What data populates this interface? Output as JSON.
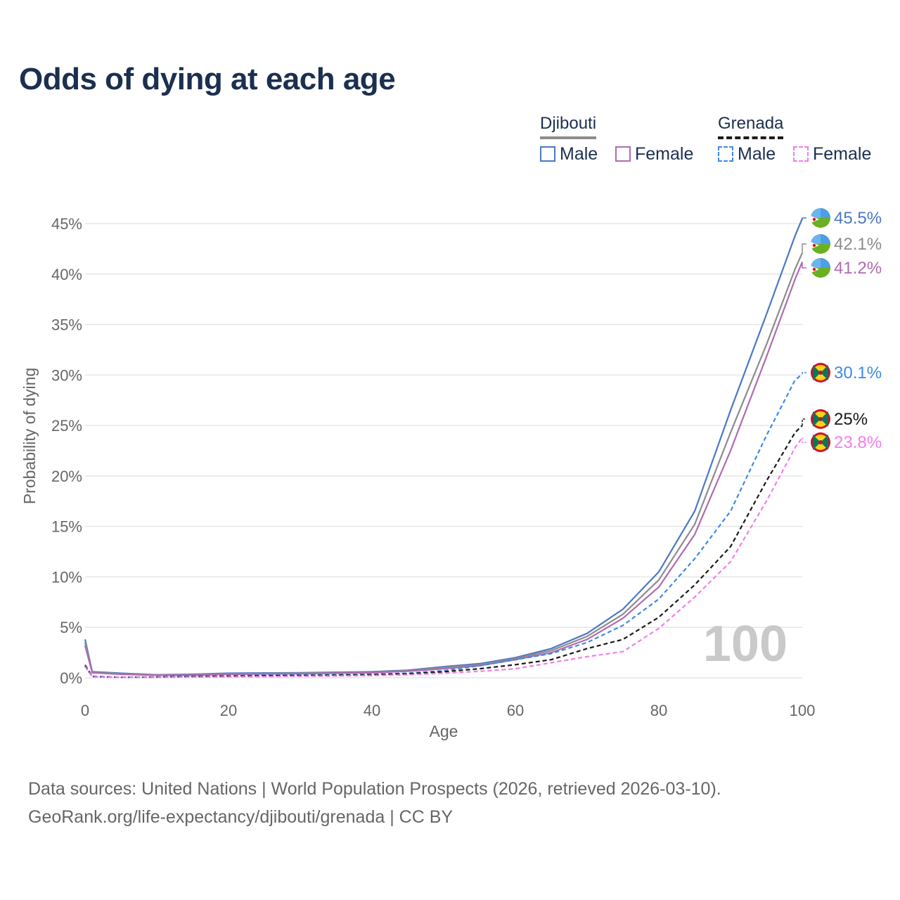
{
  "title": "Odds of dying at each age",
  "legend": {
    "groups": [
      {
        "country": "Djibouti",
        "line_style": "solid",
        "underline_color": "#8c8c8c",
        "items": [
          {
            "label": "Male",
            "color": "#4a78c4"
          },
          {
            "label": "Female",
            "color": "#b06ab0"
          }
        ]
      },
      {
        "country": "Grenada",
        "line_style": "dashed",
        "underline_color": "#1a1a1a",
        "items": [
          {
            "label": "Male",
            "color": "#3d8ae8"
          },
          {
            "label": "Female",
            "color": "#f27ee8"
          }
        ]
      }
    ]
  },
  "footer": {
    "line1": "Data sources: United Nations | World Population Prospects (2026, retrieved 2026-03-10).",
    "line2": "GeoRank.org/life-expectancy/djibouti/grenada | CC BY"
  },
  "chart_data": {
    "type": "line",
    "title": "Odds of dying at each age",
    "xlabel": "Age",
    "ylabel": "Probability of dying",
    "xlim": [
      0,
      100
    ],
    "ylim": [
      0,
      45
    ],
    "x_ticks": [
      0,
      20,
      40,
      60,
      80,
      100
    ],
    "y_ticks": [
      0,
      5,
      10,
      15,
      20,
      25,
      30,
      35,
      40,
      45
    ],
    "y_tick_labels": [
      "0%",
      "5%",
      "10%",
      "15%",
      "20%",
      "25%",
      "30%",
      "35%",
      "40%",
      "45%"
    ],
    "x_tick_labels": [
      "0",
      "20",
      "40",
      "60",
      "80",
      "100"
    ],
    "annotation": "100",
    "series": [
      {
        "name": "Djibouti Male",
        "country": "Djibouti",
        "sex": "Male",
        "style": "solid",
        "color": "#4a78c4",
        "end_label": "45.5%",
        "flag": "djibouti",
        "points": [
          [
            0,
            3.8
          ],
          [
            1,
            0.6
          ],
          [
            5,
            0.45
          ],
          [
            10,
            0.3
          ],
          [
            15,
            0.35
          ],
          [
            20,
            0.45
          ],
          [
            25,
            0.48
          ],
          [
            30,
            0.5
          ],
          [
            35,
            0.55
          ],
          [
            40,
            0.6
          ],
          [
            45,
            0.75
          ],
          [
            50,
            1.1
          ],
          [
            55,
            1.4
          ],
          [
            60,
            2.0
          ],
          [
            65,
            2.9
          ],
          [
            70,
            4.4
          ],
          [
            75,
            6.8
          ],
          [
            80,
            10.5
          ],
          [
            85,
            16.5
          ],
          [
            90,
            26.5
          ],
          [
            95,
            36.0
          ],
          [
            99,
            43.8
          ],
          [
            100,
            45.5
          ]
        ]
      },
      {
        "name": "Djibouti Both",
        "country": "Djibouti",
        "sex": "Both",
        "style": "solid",
        "color": "#8c8c8c",
        "end_label": "42.1%",
        "flag": "djibouti",
        "points": [
          [
            0,
            3.5
          ],
          [
            1,
            0.55
          ],
          [
            5,
            0.4
          ],
          [
            10,
            0.28
          ],
          [
            15,
            0.3
          ],
          [
            20,
            0.4
          ],
          [
            25,
            0.43
          ],
          [
            30,
            0.45
          ],
          [
            35,
            0.5
          ],
          [
            40,
            0.55
          ],
          [
            45,
            0.7
          ],
          [
            50,
            1.0
          ],
          [
            55,
            1.3
          ],
          [
            60,
            1.9
          ],
          [
            65,
            2.7
          ],
          [
            70,
            4.1
          ],
          [
            75,
            6.3
          ],
          [
            80,
            9.7
          ],
          [
            85,
            15.2
          ],
          [
            90,
            24.3
          ],
          [
            95,
            33.0
          ],
          [
            99,
            40.5
          ],
          [
            100,
            42.1
          ]
        ]
      },
      {
        "name": "Djibouti Female",
        "country": "Djibouti",
        "sex": "Female",
        "style": "solid",
        "color": "#b06ab0",
        "end_label": "41.2%",
        "flag": "djibouti",
        "points": [
          [
            0,
            3.2
          ],
          [
            1,
            0.5
          ],
          [
            5,
            0.35
          ],
          [
            10,
            0.25
          ],
          [
            15,
            0.25
          ],
          [
            20,
            0.35
          ],
          [
            25,
            0.38
          ],
          [
            30,
            0.4
          ],
          [
            35,
            0.45
          ],
          [
            40,
            0.5
          ],
          [
            45,
            0.65
          ],
          [
            50,
            0.9
          ],
          [
            55,
            1.2
          ],
          [
            60,
            1.8
          ],
          [
            65,
            2.5
          ],
          [
            70,
            3.8
          ],
          [
            75,
            5.9
          ],
          [
            80,
            9.0
          ],
          [
            85,
            14.2
          ],
          [
            90,
            22.5
          ],
          [
            95,
            31.8
          ],
          [
            99,
            39.5
          ],
          [
            100,
            41.2
          ]
        ]
      },
      {
        "name": "Grenada Male",
        "country": "Grenada",
        "sex": "Male",
        "style": "dashed",
        "color": "#3d8ae8",
        "end_label": "30.1%",
        "flag": "grenada",
        "points": [
          [
            0,
            1.3
          ],
          [
            1,
            0.15
          ],
          [
            5,
            0.05
          ],
          [
            10,
            0.08
          ],
          [
            15,
            0.15
          ],
          [
            20,
            0.2
          ],
          [
            25,
            0.25
          ],
          [
            30,
            0.28
          ],
          [
            35,
            0.3
          ],
          [
            40,
            0.35
          ],
          [
            45,
            0.45
          ],
          [
            50,
            0.7
          ],
          [
            55,
            1.2
          ],
          [
            60,
            1.8
          ],
          [
            65,
            2.4
          ],
          [
            70,
            3.5
          ],
          [
            75,
            5.2
          ],
          [
            80,
            7.8
          ],
          [
            85,
            11.8
          ],
          [
            90,
            16.5
          ],
          [
            95,
            24.0
          ],
          [
            99,
            29.5
          ],
          [
            100,
            30.1
          ]
        ]
      },
      {
        "name": "Grenada Both",
        "country": "Grenada",
        "sex": "Both",
        "style": "dashed",
        "color": "#1a1a1a",
        "end_label": "25%",
        "flag": "grenada",
        "points": [
          [
            0,
            1.2
          ],
          [
            1,
            0.12
          ],
          [
            5,
            0.05
          ],
          [
            10,
            0.07
          ],
          [
            15,
            0.12
          ],
          [
            20,
            0.15
          ],
          [
            25,
            0.2
          ],
          [
            30,
            0.22
          ],
          [
            35,
            0.25
          ],
          [
            40,
            0.3
          ],
          [
            45,
            0.4
          ],
          [
            50,
            0.6
          ],
          [
            55,
            0.9
          ],
          [
            60,
            1.3
          ],
          [
            65,
            1.8
          ],
          [
            70,
            2.9
          ],
          [
            75,
            3.8
          ],
          [
            80,
            6.0
          ],
          [
            85,
            9.2
          ],
          [
            90,
            13.0
          ],
          [
            95,
            19.5
          ],
          [
            99,
            24.3
          ],
          [
            100,
            25.0
          ]
        ]
      },
      {
        "name": "Grenada Female",
        "country": "Grenada",
        "sex": "Female",
        "style": "dashed",
        "color": "#f27ee8",
        "end_label": "23.8%",
        "flag": "grenada",
        "points": [
          [
            0,
            1.1
          ],
          [
            1,
            0.1
          ],
          [
            5,
            0.04
          ],
          [
            10,
            0.05
          ],
          [
            15,
            0.08
          ],
          [
            20,
            0.1
          ],
          [
            25,
            0.12
          ],
          [
            30,
            0.15
          ],
          [
            35,
            0.18
          ],
          [
            40,
            0.22
          ],
          [
            45,
            0.3
          ],
          [
            50,
            0.45
          ],
          [
            55,
            0.65
          ],
          [
            60,
            0.9
          ],
          [
            65,
            1.5
          ],
          [
            70,
            2.1
          ],
          [
            75,
            2.6
          ],
          [
            80,
            4.9
          ],
          [
            85,
            8.0
          ],
          [
            90,
            11.5
          ],
          [
            95,
            17.5
          ],
          [
            99,
            22.8
          ],
          [
            100,
            23.8
          ]
        ]
      }
    ]
  }
}
